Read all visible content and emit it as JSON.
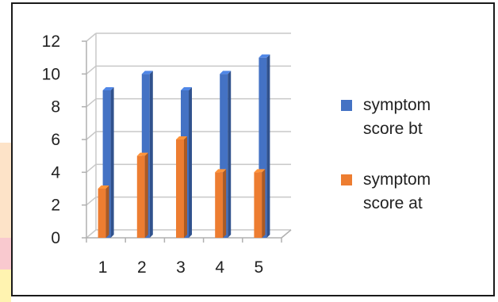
{
  "chart_data": {
    "type": "bar",
    "categories": [
      "1",
      "2",
      "3",
      "4",
      "5"
    ],
    "series": [
      {
        "name": "symptom score bt",
        "color": "#4472c4",
        "values": [
          9,
          10,
          9,
          10,
          11
        ]
      },
      {
        "name": "symptom score at",
        "color": "#ed7d31",
        "values": [
          3,
          5,
          6,
          4,
          4
        ]
      }
    ],
    "y_ticks": [
      "0",
      "2",
      "4",
      "6",
      "8",
      "10",
      "12"
    ],
    "ylim": [
      0,
      12
    ],
    "grid": true,
    "legend_position": "right",
    "style": "3d-column"
  }
}
